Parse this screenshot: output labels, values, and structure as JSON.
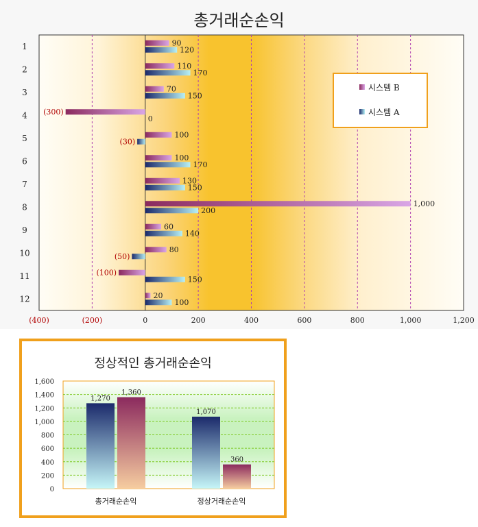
{
  "chart_data": [
    {
      "type": "bar",
      "orientation": "horizontal",
      "title": "총거래순손익",
      "categories": [
        "1",
        "2",
        "3",
        "4",
        "5",
        "6",
        "7",
        "8",
        "9",
        "10",
        "11",
        "12"
      ],
      "series": [
        {
          "name": "시스템 B",
          "color": "#8b2a5e",
          "values": [
            90,
            110,
            70,
            -300,
            100,
            100,
            130,
            1000,
            60,
            80,
            -100,
            20
          ],
          "labels": [
            "90",
            "110",
            "70",
            "(300)",
            "100",
            "100",
            "130",
            "1,000",
            "60",
            "80",
            "(100)",
            "20"
          ]
        },
        {
          "name": "시스템 A",
          "color": "#1b2a6b",
          "values": [
            120,
            170,
            150,
            0,
            -30,
            170,
            150,
            200,
            140,
            -50,
            150,
            100
          ],
          "labels": [
            "120",
            "170",
            "150",
            "0",
            "(30)",
            "170",
            "150",
            "200",
            "140",
            "(50)",
            "150",
            "100"
          ]
        }
      ],
      "xlim": [
        -400,
        1200
      ],
      "xticks": [
        -400,
        -200,
        0,
        200,
        400,
        600,
        800,
        1000,
        1200
      ],
      "xtick_labels": [
        "(400)",
        "(200)",
        "0",
        "200",
        "400",
        "600",
        "800",
        "1,000",
        "1,200"
      ],
      "grid": true,
      "legend": "top-right"
    },
    {
      "type": "bar",
      "title": "정상적인 총거래순손익",
      "categories": [
        "총거래순손익",
        "정상거래순손익"
      ],
      "series": [
        {
          "color": "#1b2a6b",
          "values": [
            1270,
            1070
          ],
          "labels": [
            "1,270",
            "1,070"
          ]
        },
        {
          "color": "#8b2a5e",
          "values": [
            1360,
            360
          ],
          "labels": [
            "1,360",
            "360"
          ]
        }
      ],
      "ylim": [
        0,
        1600
      ],
      "yticks": [
        0,
        200,
        400,
        600,
        800,
        1000,
        1200,
        1400,
        1600
      ],
      "ytick_labels": [
        "0",
        "200",
        "400",
        "600",
        "800",
        "1,000",
        "1,200",
        "1,400",
        "1,600"
      ],
      "grid": true
    }
  ]
}
